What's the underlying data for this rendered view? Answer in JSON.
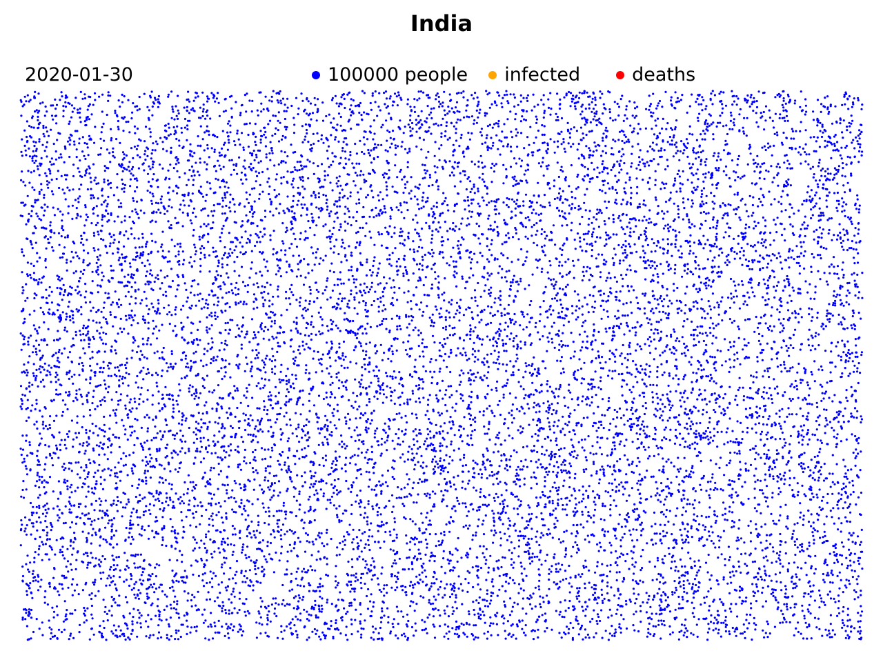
{
  "chart_data": {
    "type": "scatter",
    "title": "India",
    "date": "2020-01-30",
    "xlabel": "",
    "ylabel": "",
    "grid": false,
    "axes_visible": false,
    "legend_placement": "top-center",
    "population_per_dot": "100000 people",
    "series": [
      {
        "name": "100000 people",
        "color": "#0000ff",
        "count": 13600
      },
      {
        "name": "infected",
        "color": "#ffa500",
        "count": 0
      },
      {
        "name": "deaths",
        "color": "#ff0000",
        "count": 0
      }
    ]
  },
  "header": {
    "title": "India",
    "date": "2020-01-30"
  },
  "legend": {
    "items": [
      {
        "label": "100000 people",
        "color": "#0000ff"
      },
      {
        "label": "infected",
        "color": "#ffa500"
      },
      {
        "label": "deaths",
        "color": "#ff0000"
      }
    ]
  }
}
